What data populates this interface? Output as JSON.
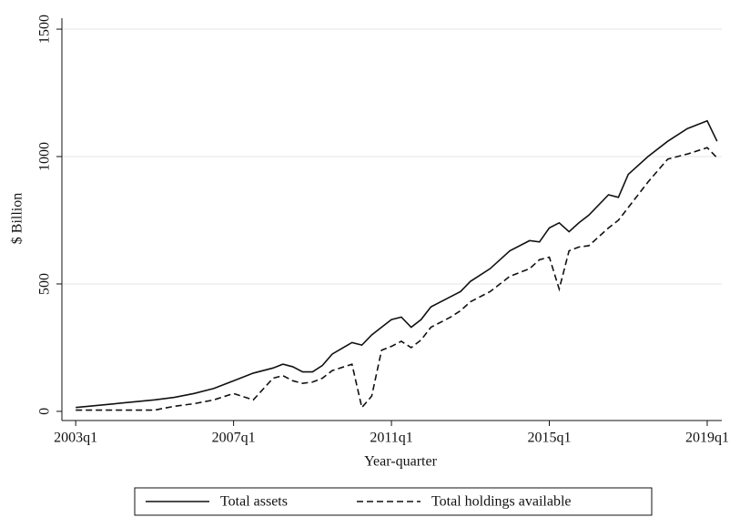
{
  "chart_data": {
    "type": "line",
    "x_label": "Year-quarter",
    "y_label": "$ Billion",
    "x": [
      2003,
      2004,
      2005,
      2005.5,
      2006,
      2006.5,
      2007,
      2007.5,
      2008,
      2008.25,
      2008.5,
      2008.75,
      2009,
      2009.25,
      2009.5,
      2010,
      2010.25,
      2010.5,
      2010.75,
      2011,
      2011.25,
      2011.5,
      2011.75,
      2012,
      2012.5,
      2012.75,
      2013,
      2013.5,
      2014,
      2014.5,
      2014.75,
      2015,
      2015.25,
      2015.5,
      2015.75,
      2016,
      2016.5,
      2016.75,
      2017,
      2017.5,
      2018,
      2018.5,
      2019,
      2019.25
    ],
    "series": [
      {
        "name": "Total assets",
        "color": "#111111",
        "dash": "solid",
        "values": [
          15,
          30,
          45,
          55,
          70,
          90,
          120,
          150,
          170,
          185,
          175,
          155,
          155,
          180,
          225,
          270,
          260,
          300,
          330,
          360,
          370,
          330,
          360,
          410,
          450,
          470,
          510,
          560,
          630,
          670,
          665,
          720,
          740,
          705,
          740,
          770,
          850,
          840,
          930,
          1000,
          1060,
          1110,
          1140,
          1060
        ]
      },
      {
        "name": "Total holdings available",
        "color": "#111111",
        "dash": "dashed",
        "values": [
          5,
          5,
          5,
          20,
          30,
          45,
          70,
          45,
          130,
          140,
          120,
          110,
          115,
          130,
          160,
          185,
          15,
          60,
          240,
          255,
          275,
          250,
          280,
          330,
          370,
          395,
          430,
          470,
          530,
          560,
          595,
          605,
          480,
          630,
          645,
          650,
          720,
          750,
          800,
          900,
          990,
          1010,
          1035,
          995
        ]
      }
    ],
    "xlim": [
      2002.65,
      2019.37
    ],
    "xticks": [
      {
        "value": 2003,
        "label": "2003q1"
      },
      {
        "value": 2007,
        "label": "2007q1"
      },
      {
        "value": 2011,
        "label": "2011q1"
      },
      {
        "value": 2015,
        "label": "2015q1"
      },
      {
        "value": 2019,
        "label": "2019q1"
      }
    ],
    "ylim": [
      -36,
      1543
    ],
    "yticks": [
      0,
      500,
      1000,
      1500
    ],
    "grid": true,
    "legend": "bottom"
  }
}
